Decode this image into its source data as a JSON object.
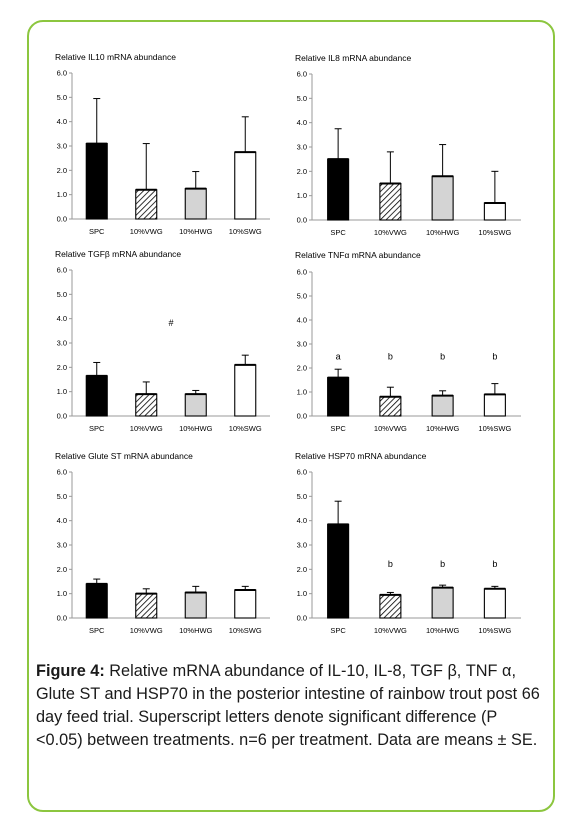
{
  "colors": {
    "border": "#8cc63f",
    "black_bar": "#000000",
    "grey_bar": "#d4d4d4",
    "white_bar": "#ffffff"
  },
  "caption": {
    "label": "Figure 4:",
    "text": " Relative mRNA abundance of IL-10, IL-8, TGF β, TNF α, Glute ST and HSP70 in the posterior intestine of rainbow trout post 66 day feed trial. Superscript letters denote significant difference (P <0.05) between treatments. n=6 per treatment. Data are means ± SE."
  },
  "chart_data": [
    {
      "type": "bar",
      "title": "Relative IL10 mRNA  abundance",
      "categories": [
        "SPC",
        "10%VWG",
        "10%HWG",
        "10%SWG"
      ],
      "values": [
        3.1,
        1.2,
        1.25,
        2.75
      ],
      "errors": [
        1.85,
        1.9,
        0.7,
        1.45
      ],
      "fills": [
        "black",
        "hatch",
        "grey",
        "white"
      ],
      "ylim": [
        0,
        6
      ],
      "yticks": [
        "0.0",
        "1.0",
        "2.0",
        "3.0",
        "4.0",
        "5.0",
        "6.0"
      ],
      "annotations": []
    },
    {
      "type": "bar",
      "title": "Relative IL8 mRNA  abundance",
      "categories": [
        "SPC",
        "10%VWG",
        "10%HWG",
        "10%SWG"
      ],
      "values": [
        2.5,
        1.5,
        1.8,
        0.7
      ],
      "errors": [
        1.25,
        1.3,
        1.3,
        1.3
      ],
      "fills": [
        "black",
        "hatch",
        "grey",
        "white"
      ],
      "ylim": [
        0,
        6
      ],
      "yticks": [
        "0.0",
        "1.0",
        "2.0",
        "3.0",
        "4.0",
        "5.0",
        "6.0"
      ],
      "annotations": []
    },
    {
      "type": "bar",
      "title": "Relative TGFβ mRNA  abundance",
      "categories": [
        "SPC",
        "10%VWG",
        "10%HWG",
        "10%SWG"
      ],
      "values": [
        1.65,
        0.9,
        0.9,
        2.1
      ],
      "errors": [
        0.55,
        0.5,
        0.15,
        0.4
      ],
      "fills": [
        "black",
        "hatch",
        "grey",
        "white"
      ],
      "ylim": [
        0,
        6
      ],
      "yticks": [
        "0.0",
        "1.0",
        "2.0",
        "3.0",
        "4.0",
        "5.0",
        "6.0"
      ],
      "annotations": [
        {
          "text": "#",
          "x_index": 1.5,
          "y": 3.7
        }
      ]
    },
    {
      "type": "bar",
      "title": "Relative TNFα mRNA  abundance",
      "categories": [
        "SPC",
        "10%VWG",
        "10%HWG",
        "10%SWG"
      ],
      "values": [
        1.6,
        0.8,
        0.85,
        0.9
      ],
      "errors": [
        0.35,
        0.4,
        0.2,
        0.45
      ],
      "fills": [
        "black",
        "hatch",
        "grey",
        "white"
      ],
      "ylim": [
        0,
        6
      ],
      "yticks": [
        "0.0",
        "1.0",
        "2.0",
        "3.0",
        "4.0",
        "5.0",
        "6.0"
      ],
      "annotations": [
        {
          "text": "a",
          "x_index": 0,
          "y": 2.35
        },
        {
          "text": "b",
          "x_index": 1,
          "y": 2.35
        },
        {
          "text": "b",
          "x_index": 2,
          "y": 2.35
        },
        {
          "text": "b",
          "x_index": 3,
          "y": 2.35
        }
      ]
    },
    {
      "type": "bar",
      "title": "Relative Glute ST mRNA  abundance",
      "categories": [
        "SPC",
        "10%VWG",
        "10%HWG",
        "10%SWG"
      ],
      "values": [
        1.4,
        1.0,
        1.05,
        1.15
      ],
      "errors": [
        0.2,
        0.2,
        0.25,
        0.15
      ],
      "fills": [
        "black",
        "hatch",
        "grey",
        "white"
      ],
      "ylim": [
        0,
        6
      ],
      "yticks": [
        "0.0",
        "1.0",
        "2.0",
        "3.0",
        "4.0",
        "5.0",
        "6.0"
      ],
      "annotations": []
    },
    {
      "type": "bar",
      "title": "Relative HSP70 mRNA  abundance",
      "categories": [
        "SPC",
        "10%VWG",
        "10%HWG",
        "10%SWG"
      ],
      "values": [
        3.85,
        0.95,
        1.25,
        1.2
      ],
      "errors": [
        0.95,
        0.1,
        0.1,
        0.1
      ],
      "fills": [
        "black",
        "hatch",
        "grey",
        "white"
      ],
      "ylim": [
        0,
        6
      ],
      "yticks": [
        "0.0",
        "1.0",
        "2.0",
        "3.0",
        "4.0",
        "5.0",
        "6.0"
      ],
      "annotations": [
        {
          "text": "a",
          "x_index": 0,
          "y": 2.1,
          "color": "#ffffff"
        },
        {
          "text": "b",
          "x_index": 1,
          "y": 2.1
        },
        {
          "text": "b",
          "x_index": 2,
          "y": 2.1
        },
        {
          "text": "b",
          "x_index": 3,
          "y": 2.1
        }
      ]
    }
  ]
}
